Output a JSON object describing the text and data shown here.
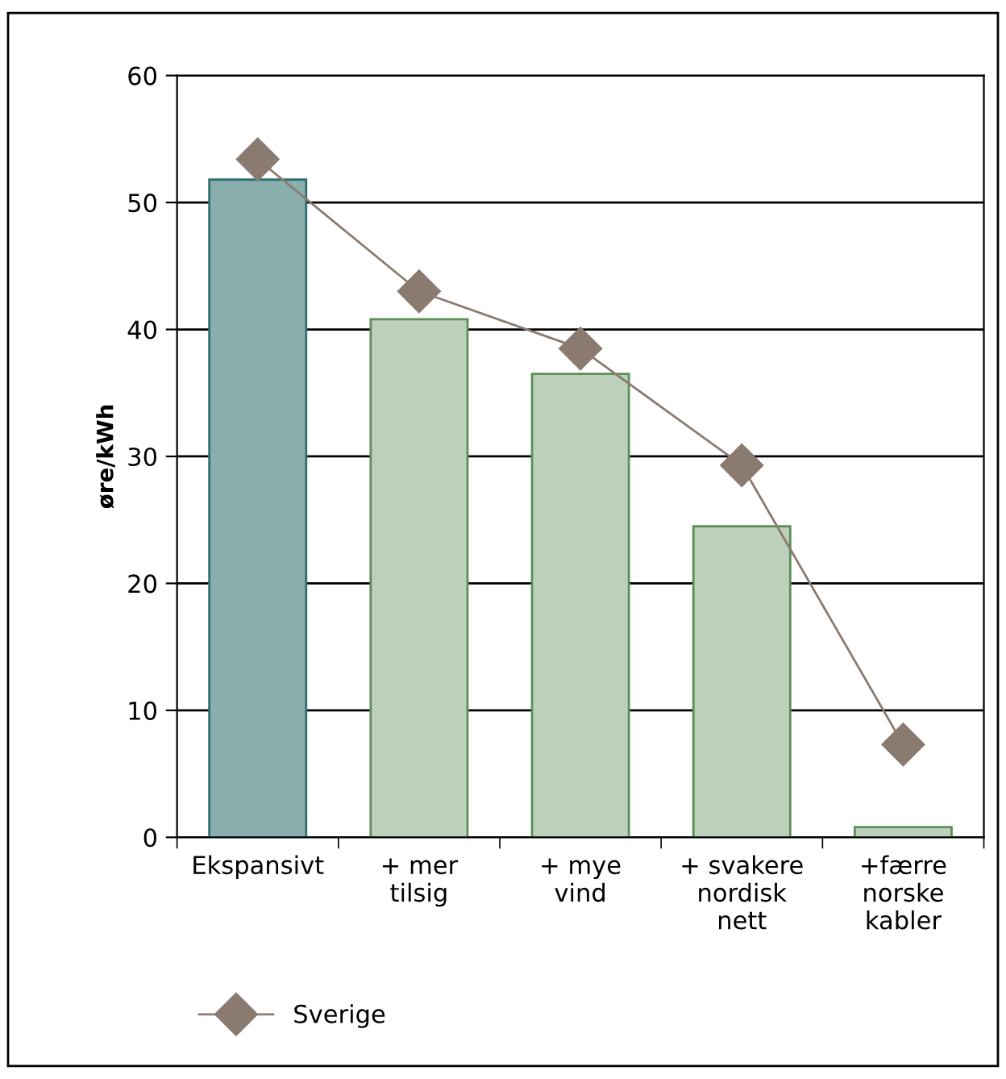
{
  "chart_data": {
    "type": "bar",
    "ylabel": "øre/kWh",
    "categories": [
      "Ekspansivt",
      "+ mer\ntilsig",
      "+ mye\nvind",
      "+ svakere\nnordisk\nnett",
      "+færre\nnorske\nkabler"
    ],
    "series": [
      {
        "colors": [
          "#8aaeae",
          "#bdd0bb",
          "#bdd0bb",
          "#bdd0bb",
          "#bdd0bb"
        ],
        "values": [
          51.8,
          40.8,
          36.5,
          24.5,
          0.8
        ]
      },
      {
        "type": "line",
        "name": "Sverige",
        "color": "#8b7a6f",
        "marker": "diamond",
        "values": [
          53.4,
          43.0,
          38.5,
          29.3,
          7.3
        ]
      }
    ],
    "ylim": [
      0,
      60
    ],
    "yticks": [
      0,
      10,
      20,
      30,
      40,
      50,
      60
    ],
    "grid": "y",
    "legend": "bottom left"
  }
}
